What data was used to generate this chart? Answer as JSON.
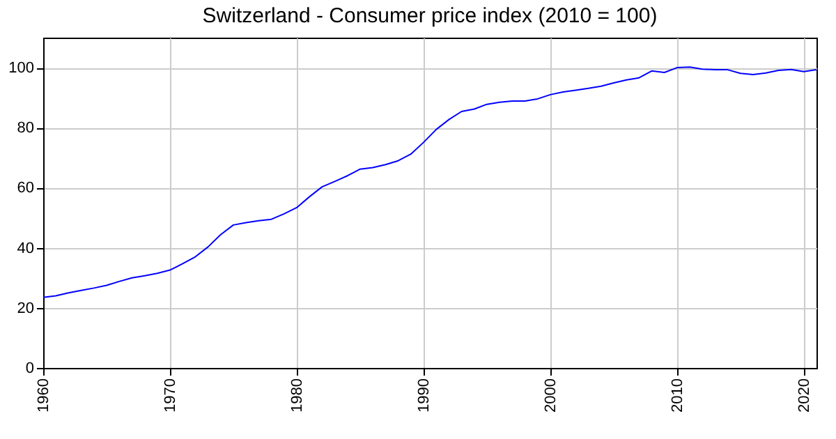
{
  "chart_data": {
    "type": "line",
    "title": "Switzerland - Consumer price index (2010 = 100)",
    "x": [
      1960,
      1961,
      1962,
      1963,
      1964,
      1965,
      1966,
      1967,
      1968,
      1969,
      1970,
      1971,
      1972,
      1973,
      1974,
      1975,
      1976,
      1977,
      1978,
      1979,
      1980,
      1981,
      1982,
      1983,
      1984,
      1985,
      1986,
      1987,
      1988,
      1989,
      1990,
      1991,
      1992,
      1993,
      1994,
      1995,
      1996,
      1997,
      1998,
      1999,
      2000,
      2001,
      2002,
      2003,
      2004,
      2005,
      2006,
      2007,
      2008,
      2009,
      2010,
      2011,
      2012,
      2013,
      2014,
      2015,
      2016,
      2017,
      2018,
      2019,
      2020,
      2021
    ],
    "series": [
      {
        "color": "#0000ff",
        "values": [
          23.5,
          24,
          25,
          25.8,
          26.6,
          27.5,
          28.8,
          30,
          30.7,
          31.5,
          32.6,
          34.7,
          37,
          40.3,
          44.4,
          47.6,
          48.4,
          49,
          49.5,
          51.3,
          53.4,
          57,
          60.3,
          62.1,
          64,
          66.2,
          66.7,
          67.7,
          69,
          71.2,
          75.1,
          79.4,
          82.7,
          85.4,
          86.2,
          87.8,
          88.5,
          88.9,
          88.9,
          89.6,
          91,
          91.9,
          92.5,
          93.1,
          93.8,
          94.9,
          95.9,
          96.6,
          98.9,
          98.4,
          100,
          100.2,
          99.5,
          99.3,
          99.3,
          98.1,
          97.7,
          98.2,
          99.1,
          99.4,
          98.7,
          99.3
        ]
      }
    ],
    "xlim": [
      1960,
      2021
    ],
    "xticks": [
      1960,
      1970,
      1980,
      1990,
      2000,
      2010,
      2020
    ],
    "ylim": [
      0,
      110
    ],
    "yticks": [
      0,
      20,
      40,
      60,
      80,
      100
    ],
    "grid": true,
    "marker": "none",
    "line_style": "solid"
  }
}
